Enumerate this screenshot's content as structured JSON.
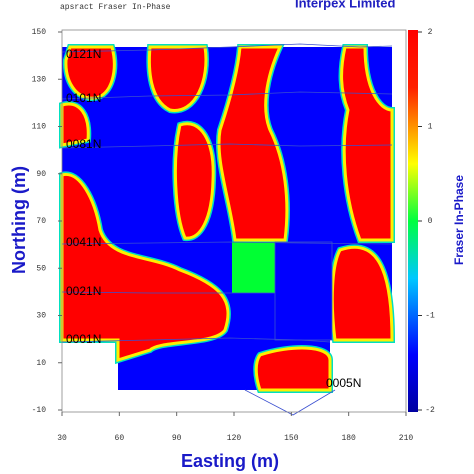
{
  "chart_data": {
    "type": "contour",
    "title": "apsract Fraser In-Phase",
    "subtitle": "Interpex Limited",
    "x_label": "Easting (m)",
    "y_label": "Northing (m)",
    "xlim": [
      30,
      210
    ],
    "xticks": [
      30,
      60,
      90,
      120,
      150,
      180,
      210
    ],
    "ylim": [
      -10,
      150
    ],
    "yticks": [
      150,
      130,
      110,
      90,
      70,
      50,
      30,
      10,
      -10
    ],
    "colorbar": {
      "label": "Fraser In-Phase",
      "lim": [
        -2,
        2
      ],
      "ticks": [
        2,
        1,
        0,
        -1,
        -2
      ]
    },
    "line_labels": [
      "0121N",
      "0101N",
      "0081N",
      "0041N",
      "0021N",
      "0001N",
      "0005N"
    ]
  }
}
